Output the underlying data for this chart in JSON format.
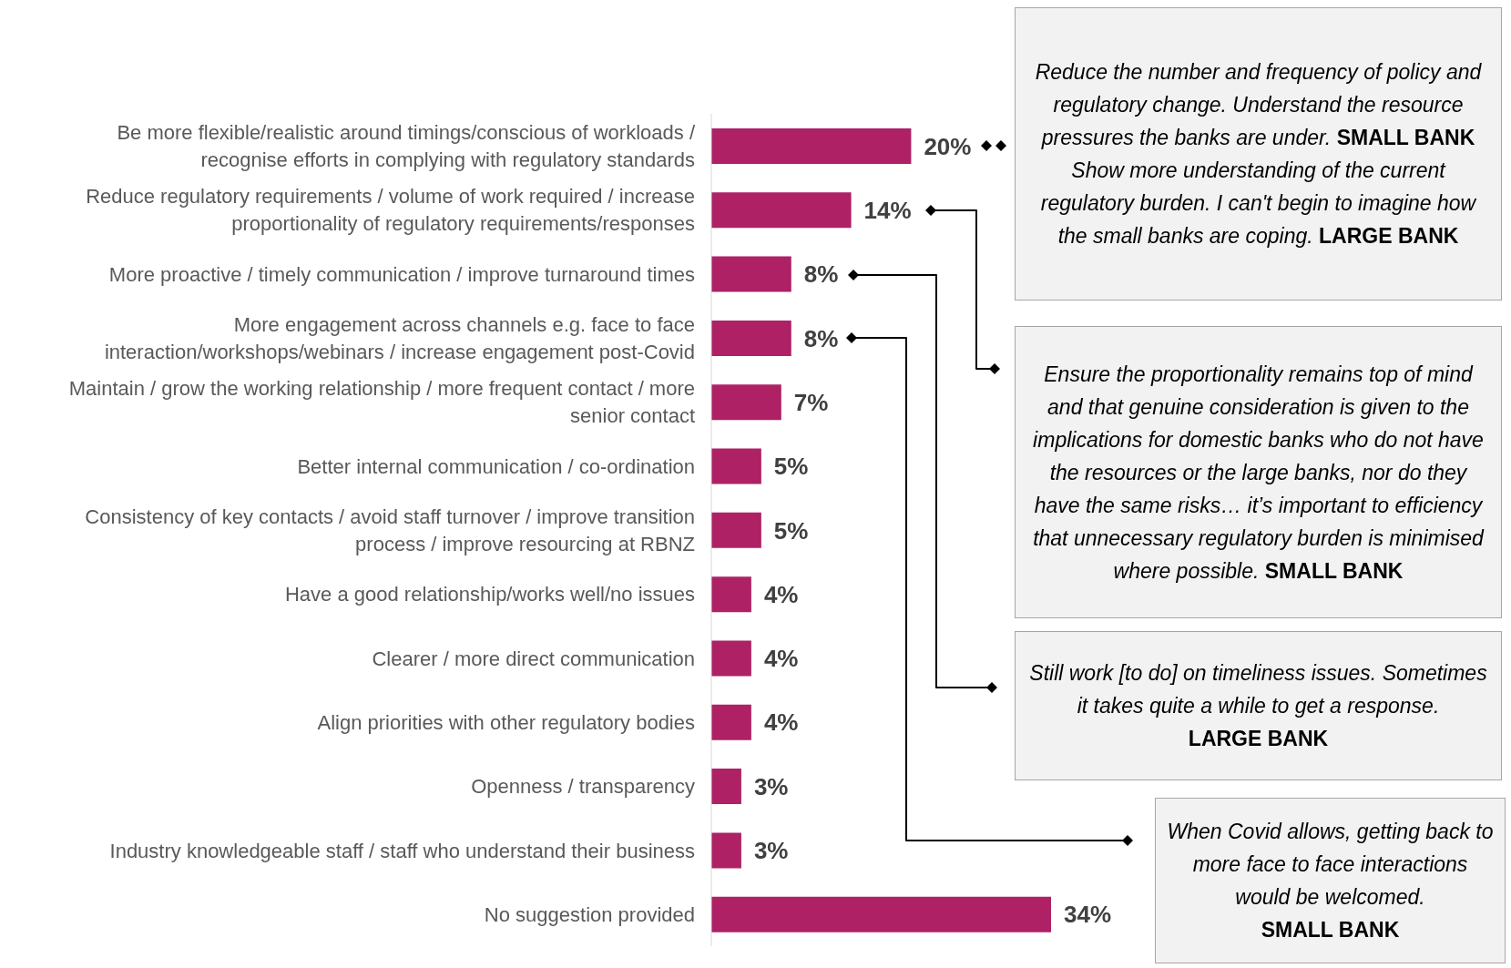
{
  "chart_data": {
    "type": "bar",
    "orientation": "horizontal",
    "categories": [
      "Be more flexible/realistic around timings/conscious of workloads / recognise efforts in complying with regulatory standards",
      "Reduce regulatory requirements / volume of work required / increase proportionality of regulatory requirements/responses",
      "More proactive / timely communication / improve turnaround times",
      "More engagement across channels e.g. face to face interaction/workshops/webinars / increase engagement post-Covid",
      "Maintain / grow the working relationship / more frequent contact / more senior contact",
      "Better internal communication / co-ordination",
      "Consistency of key contacts / avoid staff turnover / improve transition process / improve resourcing at RBNZ",
      "Have a good relationship/works well/no issues",
      "Clearer / more direct communication",
      "Align priorities with other regulatory bodies",
      "Openness / transparency",
      "Industry knowledgeable staff / staff who understand their business",
      "No suggestion provided"
    ],
    "values": [
      20,
      14,
      8,
      8,
      7,
      5,
      5,
      4,
      4,
      4,
      3,
      3,
      34
    ],
    "value_labels": [
      "20%",
      "14%",
      "8%",
      "8%",
      "7%",
      "5%",
      "5%",
      "4%",
      "4%",
      "4%",
      "3%",
      "3%",
      "34%"
    ],
    "color": "#ae2165",
    "grid": false,
    "legend": false,
    "annotations": [
      "Reduce the number and frequency of policy and regulatory change. Understand the resource pressures the banks are under.",
      "SMALL BANK",
      "Show more understanding of the current regulatory burden. I can't begin to imagine how the small banks are coping.",
      "LARGE BANK",
      "Ensure the proportionality remains top of mind and that genuine consideration is given to the implications for domestic banks who do not have the resources or the large banks, nor do they have the same risks… it’s important to efficiency that unnecessary regulatory burden is minimised where possible.",
      "SMALL BANK",
      "Still work [to do] on timeliness issues. Sometimes it takes quite a while to get a response.",
      "LARGE BANK",
      "When Covid allows, getting back to more face to face interactions would be welcomed.",
      "SMALL BANK"
    ]
  }
}
